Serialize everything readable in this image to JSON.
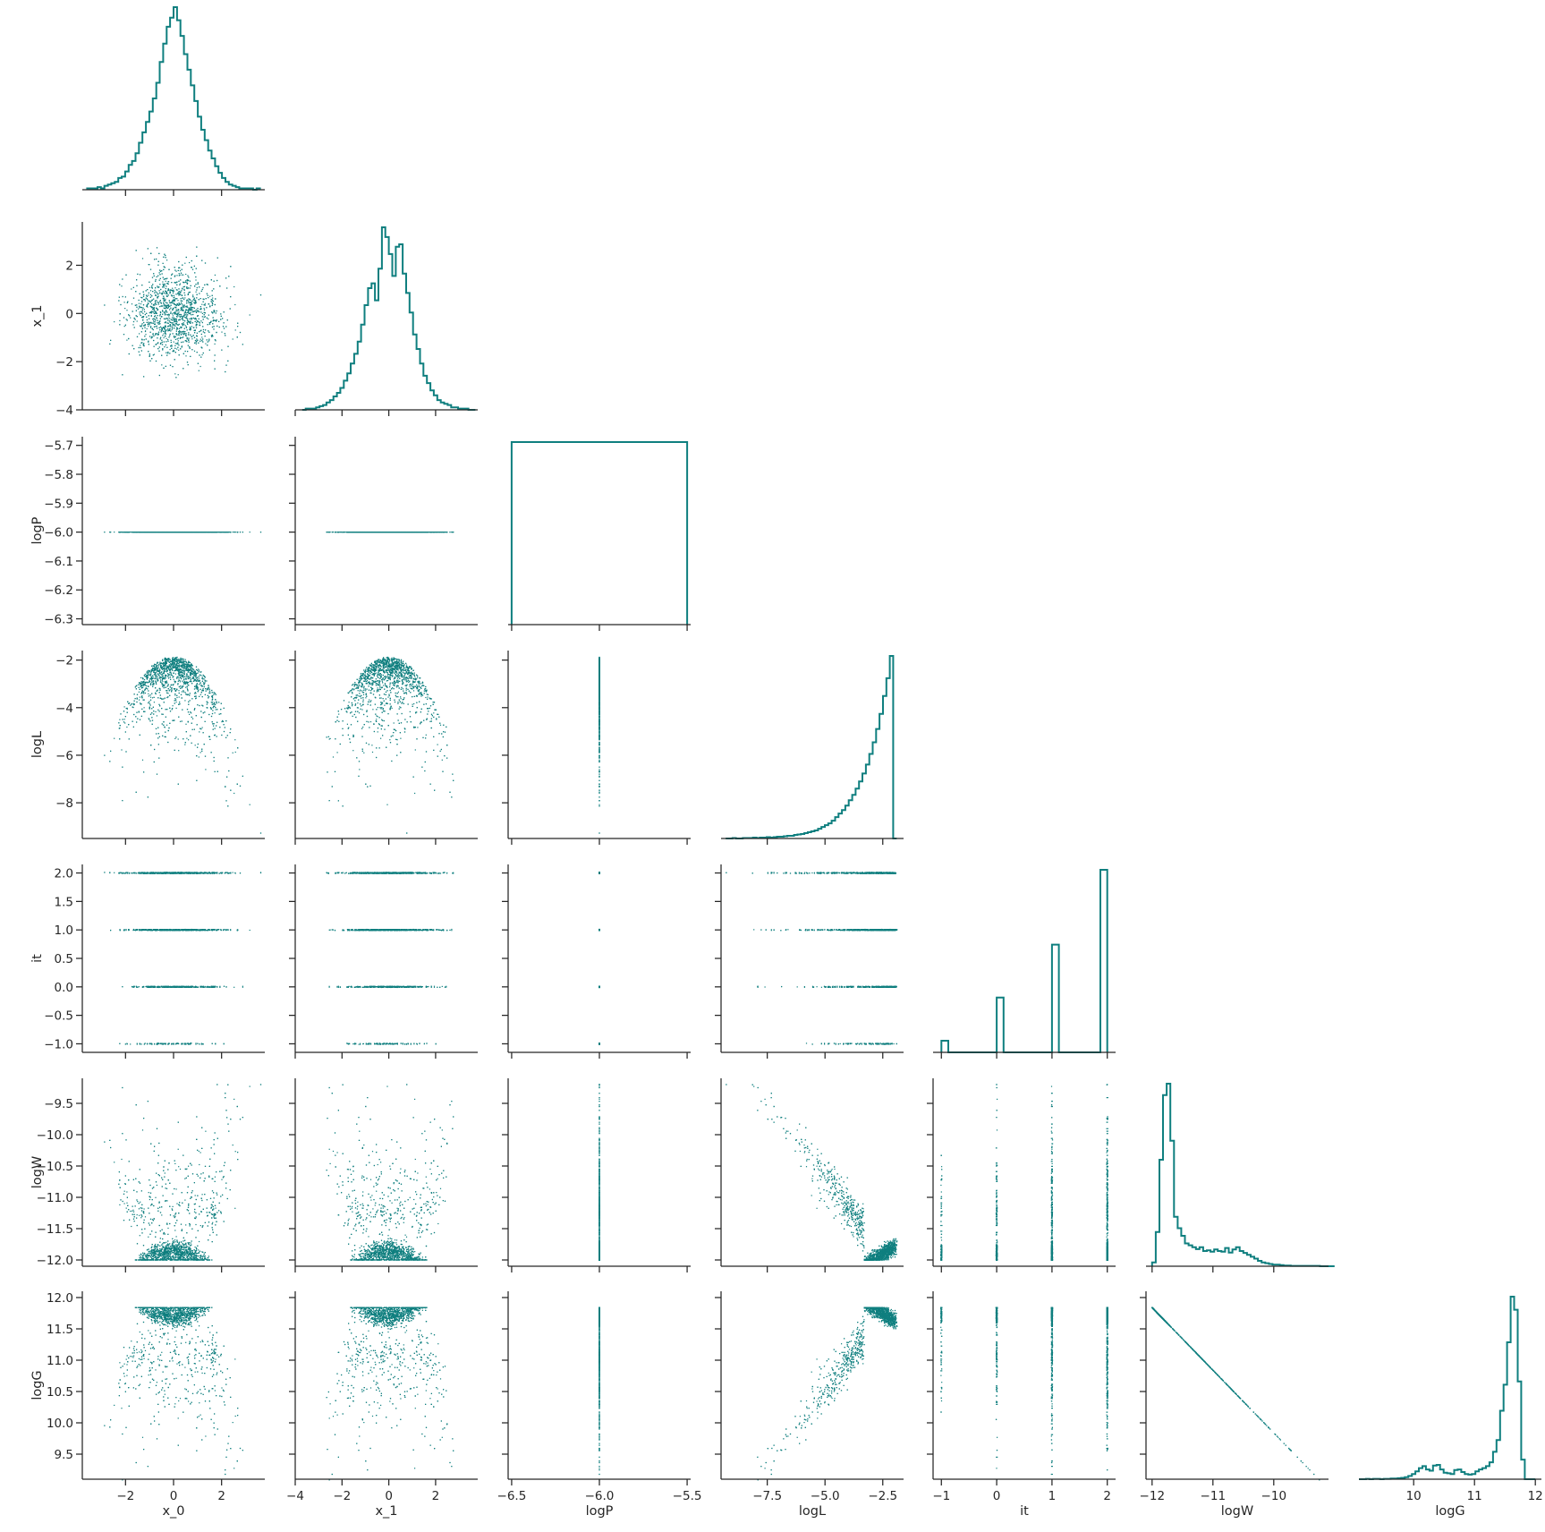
{
  "chart_data": {
    "type": "scatter",
    "kind": "corner-pairplot",
    "color": "#0f7f7f",
    "variables": [
      {
        "name": "x_0",
        "lim": [
          -3.8,
          3.8
        ],
        "ticks": [
          -2,
          0,
          2
        ],
        "tick_labels": [
          "−2",
          "0",
          "2"
        ]
      },
      {
        "name": "x_1",
        "lim": [
          -4.0,
          3.8
        ],
        "ticks": [
          -4,
          -2,
          0,
          2
        ],
        "tick_labels": [
          "−4",
          "−2",
          "0",
          "2"
        ]
      },
      {
        "name": "logP",
        "lim": [
          -6.52,
          -5.48
        ],
        "ticks": [
          -6.5,
          -6.0,
          -5.5
        ],
        "tick_labels": [
          "−6.5",
          "−6.0",
          "−5.5"
        ],
        "y_lim": [
          -6.32,
          -5.67
        ],
        "y_ticks": [
          -6.3,
          -6.2,
          -6.1,
          -6.0,
          -5.9,
          -5.8,
          -5.7
        ],
        "y_tick_labels": [
          "−6.3",
          "−6.2",
          "−6.1",
          "−6.0",
          "−5.9",
          "−5.8",
          "−5.7"
        ]
      },
      {
        "name": "logL",
        "lim": [
          -9.5,
          -1.6
        ],
        "ticks": [
          -7.5,
          -5.0,
          -2.5
        ],
        "tick_labels": [
          "−7.5",
          "−5.0",
          "−2.5"
        ],
        "y_ticks": [
          -8,
          -6,
          -4,
          -2
        ],
        "y_tick_labels": [
          "−8",
          "−6",
          "−4",
          "−2"
        ]
      },
      {
        "name": "it",
        "lim": [
          -1.15,
          2.15
        ],
        "ticks": [
          -1,
          0,
          1,
          2
        ],
        "tick_labels": [
          "−1",
          "0",
          "1",
          "2"
        ],
        "y_ticks": [
          -1.0,
          -0.5,
          0.0,
          0.5,
          1.0,
          1.5,
          2.0
        ],
        "y_tick_labels": [
          "−1.0",
          "−0.5",
          "0.0",
          "0.5",
          "1.0",
          "1.5",
          "2.0"
        ]
      },
      {
        "name": "logW",
        "lim": [
          -12.1,
          -9.1
        ],
        "ticks": [
          -12,
          -11,
          -10
        ],
        "tick_labels": [
          "−12",
          "−11",
          "−10"
        ],
        "y_ticks": [
          -12.0,
          -11.5,
          -11.0,
          -10.5,
          -10.0,
          -9.5
        ],
        "y_tick_labels": [
          "−12.0",
          "−11.5",
          "−11.0",
          "−10.5",
          "−10.0",
          "−9.5"
        ]
      },
      {
        "name": "logG",
        "lim": [
          9.1,
          12.1
        ],
        "ticks": [
          10,
          11,
          12
        ],
        "tick_labels": [
          "10",
          "11",
          "12"
        ],
        "y_ticks": [
          9.5,
          10.0,
          10.5,
          11.0,
          11.5,
          12.0
        ],
        "y_tick_labels": [
          "9.5",
          "10.0",
          "10.5",
          "11.0",
          "11.5",
          "12.0"
        ]
      }
    ],
    "histograms": {
      "x_0": {
        "edges_lim": [
          -3.6,
          3.6
        ],
        "bins": 50,
        "counts": [
          1,
          1,
          1,
          2,
          1,
          3,
          4,
          5,
          6,
          9,
          10,
          14,
          19,
          22,
          28,
          36,
          44,
          52,
          60,
          70,
          82,
          98,
          112,
          125,
          132,
          140,
          130,
          118,
          104,
          92,
          80,
          68,
          56,
          46,
          38,
          30,
          24,
          18,
          13,
          9,
          6,
          4,
          3,
          2,
          1,
          1,
          1,
          1,
          0,
          1
        ]
      },
      "x_1": {
        "edges_lim": [
          -3.7,
          3.7
        ],
        "bins": 50,
        "counts": [
          0,
          1,
          1,
          1,
          2,
          3,
          4,
          6,
          8,
          11,
          14,
          18,
          24,
          30,
          38,
          46,
          56,
          70,
          86,
          100,
          104,
          90,
          116,
          150,
          142,
          128,
          110,
          134,
          136,
          112,
          96,
          80,
          62,
          50,
          38,
          28,
          22,
          16,
          12,
          8,
          6,
          5,
          4,
          2,
          2,
          1,
          1,
          1,
          0,
          0
        ]
      },
      "logP": {
        "edges_lim": [
          -6.5,
          -5.5
        ],
        "bins": 1,
        "counts": [
          1
        ]
      },
      "logL": {
        "edges_lim": [
          -9.3,
          -1.9
        ],
        "bins": 50,
        "counts": [
          0,
          0,
          1,
          0,
          0,
          1,
          1,
          1,
          2,
          1,
          2,
          2,
          3,
          2,
          3,
          4,
          4,
          5,
          6,
          6,
          8,
          9,
          10,
          12,
          14,
          16,
          18,
          22,
          26,
          30,
          34,
          40,
          48,
          56,
          64,
          74,
          86,
          98,
          112,
          128,
          146,
          166,
          190,
          216,
          246,
          280,
          320,
          360,
          410,
          0
        ]
      },
      "it": {
        "edges": [
          -1.0,
          -0.875,
          0.0,
          0.125,
          1.0,
          1.125,
          1.875,
          2.0
        ],
        "counts": [
          60,
          0,
          282,
          0,
          555,
          0,
          940
        ]
      },
      "logW": {
        "edges_lim": [
          -12.0,
          -9.0
        ],
        "bins": 50,
        "counts": [
          10,
          90,
          280,
          450,
          480,
          330,
          130,
          100,
          80,
          60,
          55,
          50,
          45,
          50,
          40,
          42,
          38,
          44,
          40,
          38,
          48,
          36,
          44,
          50,
          40,
          35,
          30,
          25,
          20,
          14,
          10,
          8,
          6,
          4,
          4,
          3,
          2,
          2,
          1,
          1,
          1,
          1,
          1,
          1,
          1,
          1,
          0,
          0,
          0,
          0
        ]
      },
      "logG": {
        "edges_lim": [
          9.1,
          12.0
        ],
        "bins": 50,
        "counts": [
          0,
          0,
          1,
          0,
          1,
          1,
          0,
          1,
          1,
          2,
          2,
          3,
          4,
          6,
          10,
          16,
          24,
          34,
          40,
          30,
          26,
          42,
          44,
          30,
          20,
          18,
          16,
          28,
          30,
          22,
          16,
          14,
          16,
          24,
          30,
          34,
          40,
          52,
          84,
          120,
          210,
          290,
          420,
          560,
          520,
          300,
          60,
          0,
          0,
          0
        ]
      }
    },
    "grid": false,
    "legend": "none"
  }
}
